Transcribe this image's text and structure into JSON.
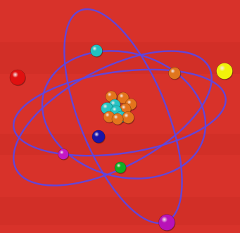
{
  "image": {
    "subject": "atom-model",
    "colors": {
      "background": "#d8322a",
      "background_shade": "#c92a23",
      "orbit": "#5a46e6",
      "nucleus_proton": "#e3741c",
      "nucleus_neutron": "#28c4c4"
    }
  },
  "orbits": [
    {
      "name": "orbit-1"
    },
    {
      "name": "orbit-2"
    },
    {
      "name": "orbit-3"
    },
    {
      "name": "orbit-4"
    }
  ],
  "electrons": [
    {
      "name": "electron-red",
      "color": "#e01010"
    },
    {
      "name": "electron-cyan",
      "color": "#22c0c0"
    },
    {
      "name": "electron-orange",
      "color": "#e0761e"
    },
    {
      "name": "electron-yellow",
      "color": "#f2f20a"
    },
    {
      "name": "electron-navy",
      "color": "#1a14a8"
    },
    {
      "name": "electron-magenta-small",
      "color": "#c418c4"
    },
    {
      "name": "electron-green",
      "color": "#10b024"
    },
    {
      "name": "electron-magenta-large",
      "color": "#b812b8"
    }
  ],
  "nucleus": {
    "particles": [
      {
        "kind": "proton",
        "color": "#e3741c"
      },
      {
        "kind": "proton",
        "color": "#e3741c"
      },
      {
        "kind": "neutron",
        "color": "#28c4c4"
      },
      {
        "kind": "proton",
        "color": "#e3741c"
      },
      {
        "kind": "neutron",
        "color": "#28c4c4"
      },
      {
        "kind": "proton",
        "color": "#e3741c"
      },
      {
        "kind": "neutron",
        "color": "#28c4c4"
      },
      {
        "kind": "proton",
        "color": "#e3741c"
      },
      {
        "kind": "neutron",
        "color": "#28c4c4"
      },
      {
        "kind": "proton",
        "color": "#e3741c"
      },
      {
        "kind": "proton",
        "color": "#e3741c"
      }
    ]
  }
}
